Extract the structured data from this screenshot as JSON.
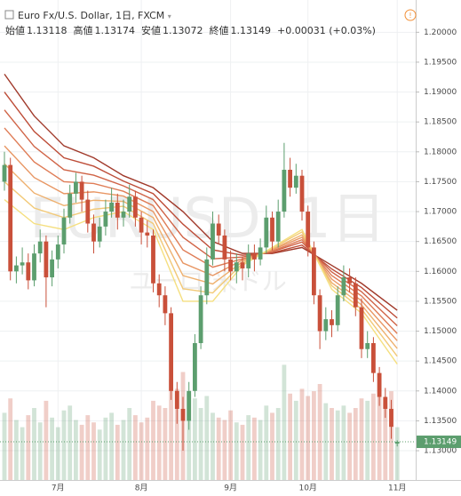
{
  "chart_data": {
    "type": "candlestick",
    "title": "Euro Fx/U.S. Dollar, 1日, FXCM",
    "stats": [
      {
        "name": "始値",
        "value": "1.13118"
      },
      {
        "name": "高値",
        "value": "1.13174"
      },
      {
        "name": "安値",
        "value": "1.13072"
      },
      {
        "name": "終値",
        "value": "1.13149"
      }
    ],
    "change": "+0.00031 (+0.03%)",
    "watermark": "EURUSD, 1日",
    "watermark_sub": "ユーロ/米ドル",
    "categories": [
      null,
      null,
      null,
      null,
      null,
      null,
      null,
      null,
      null,
      "7月",
      null,
      null,
      null,
      null,
      null,
      null,
      null,
      null,
      null,
      null,
      null,
      null,
      null,
      "8月",
      null,
      null,
      null,
      null,
      null,
      null,
      null,
      null,
      null,
      null,
      null,
      null,
      null,
      null,
      "9月",
      null,
      null,
      null,
      null,
      null,
      null,
      null,
      null,
      null,
      null,
      null,
      null,
      "10月",
      null,
      null,
      null,
      null,
      null,
      null,
      null,
      null,
      null,
      null,
      null,
      null,
      null,
      null,
      "11月"
    ],
    "open": [
      1.175,
      1.1778,
      1.16,
      1.161,
      1.1615,
      1.1585,
      1.163,
      1.165,
      1.159,
      1.162,
      1.1645,
      1.169,
      1.173,
      1.175,
      1.172,
      1.168,
      1.165,
      1.1675,
      1.17,
      1.1715,
      1.169,
      1.17,
      1.1725,
      1.169,
      1.1665,
      1.166,
      1.158,
      1.156,
      1.153,
      1.14,
      1.137,
      1.135,
      1.14,
      1.148,
      1.156,
      1.162,
      1.168,
      1.166,
      1.162,
      1.16,
      1.1615,
      1.1605,
      1.163,
      1.162,
      1.164,
      1.169,
      1.165,
      1.17,
      1.177,
      1.174,
      1.176,
      1.17,
      1.164,
      1.156,
      1.15,
      1.152,
      1.151,
      1.156,
      1.159,
      1.158,
      1.154,
      1.147,
      1.148,
      1.143,
      1.139,
      1.137,
      1.13118
    ],
    "high": [
      1.18,
      1.179,
      1.1625,
      1.164,
      1.163,
      1.1645,
      1.167,
      1.166,
      1.1635,
      1.166,
      1.1705,
      1.1745,
      1.1765,
      1.176,
      1.1735,
      1.1695,
      1.169,
      1.172,
      1.174,
      1.173,
      1.172,
      1.1745,
      1.1735,
      1.17,
      1.1685,
      1.167,
      1.1595,
      1.1575,
      1.154,
      1.1415,
      1.139,
      1.1415,
      1.1495,
      1.1575,
      1.164,
      1.17,
      1.1695,
      1.167,
      1.1635,
      1.163,
      1.1625,
      1.1645,
      1.1645,
      1.1655,
      1.171,
      1.17,
      1.172,
      1.1815,
      1.179,
      1.178,
      1.177,
      1.171,
      1.165,
      1.157,
      1.154,
      1.1535,
      1.1575,
      1.161,
      1.1605,
      1.159,
      1.1555,
      1.15,
      1.149,
      1.144,
      1.1405,
      1.1385,
      1.13174
    ],
    "low": [
      1.1735,
      1.1585,
      1.158,
      1.1595,
      1.157,
      1.1575,
      1.1615,
      1.154,
      1.1575,
      1.1605,
      1.163,
      1.168,
      1.1715,
      1.17,
      1.1665,
      1.163,
      1.164,
      1.166,
      1.169,
      1.167,
      1.1675,
      1.169,
      1.1675,
      1.1645,
      1.164,
      1.1565,
      1.154,
      1.151,
      1.1385,
      1.1345,
      1.13,
      1.1335,
      1.139,
      1.147,
      1.1545,
      1.161,
      1.1645,
      1.16,
      1.1585,
      1.158,
      1.1585,
      1.159,
      1.16,
      1.161,
      1.163,
      1.1635,
      1.164,
      1.169,
      1.1725,
      1.173,
      1.1685,
      1.1625,
      1.1545,
      1.147,
      1.1485,
      1.149,
      1.15,
      1.155,
      1.1565,
      1.1525,
      1.1455,
      1.1455,
      1.1415,
      1.1375,
      1.1355,
      1.132,
      1.13072
    ],
    "close": [
      1.1778,
      1.16,
      1.161,
      1.1615,
      1.1585,
      1.163,
      1.165,
      1.159,
      1.162,
      1.1645,
      1.169,
      1.173,
      1.175,
      1.172,
      1.168,
      1.165,
      1.1675,
      1.17,
      1.1715,
      1.169,
      1.17,
      1.1725,
      1.169,
      1.1665,
      1.166,
      1.158,
      1.156,
      1.153,
      1.14,
      1.137,
      1.135,
      1.14,
      1.148,
      1.156,
      1.162,
      1.168,
      1.166,
      1.162,
      1.16,
      1.1615,
      1.1605,
      1.163,
      1.162,
      1.164,
      1.169,
      1.165,
      1.17,
      1.177,
      1.174,
      1.176,
      1.17,
      1.164,
      1.156,
      1.15,
      1.152,
      1.151,
      1.156,
      1.159,
      1.158,
      1.154,
      1.147,
      1.148,
      1.143,
      1.139,
      1.137,
      1.134,
      1.13149
    ],
    "volume": [
      28,
      34,
      25,
      22,
      27,
      30,
      24,
      33,
      26,
      22,
      29,
      31,
      25,
      23,
      27,
      24,
      21,
      26,
      28,
      23,
      25,
      30,
      27,
      24,
      26,
      33,
      31,
      30,
      42,
      38,
      45,
      36,
      34,
      30,
      35,
      28,
      26,
      25,
      29,
      24,
      23,
      27,
      26,
      25,
      31,
      28,
      30,
      48,
      36,
      33,
      38,
      35,
      37,
      40,
      32,
      30,
      29,
      31,
      28,
      30,
      34,
      33,
      36,
      35,
      32,
      37,
      22
    ],
    "vlim": [
      0,
      200
    ],
    "up_color": "#5c9e6e",
    "down_color": "#c9503a",
    "ylim": [
      1.1251,
      1.2054
    ],
    "yticks": [
      {
        "value": 1.13,
        "label": "1.13000"
      },
      {
        "value": 1.135,
        "label": "1.13500"
      },
      {
        "value": 1.14,
        "label": "1.14000"
      },
      {
        "value": 1.145,
        "label": "1.14500"
      },
      {
        "value": 1.15,
        "label": "1.15000"
      },
      {
        "value": 1.155,
        "label": "1.15500"
      },
      {
        "value": 1.16,
        "label": "1.16000"
      },
      {
        "value": 1.165,
        "label": "1.16500"
      },
      {
        "value": 1.17,
        "label": "1.17000"
      },
      {
        "value": 1.175,
        "label": "1.17500"
      },
      {
        "value": 1.18,
        "label": "1.18000"
      },
      {
        "value": 1.185,
        "label": "1.18500"
      },
      {
        "value": 1.19,
        "label": "1.19000"
      },
      {
        "value": 1.195,
        "label": "1.19500"
      },
      {
        "value": 1.2,
        "label": "1.20000"
      }
    ],
    "grid": true,
    "last_price": {
      "value": 1.13149,
      "label": "1.13149"
    },
    "ribbons": {
      "x": [
        0,
        5,
        10,
        15,
        20,
        25,
        30,
        35,
        40,
        45,
        50,
        55,
        60,
        66
      ],
      "series": [
        {
          "color": "#a0392a",
          "values": [
            1.193,
            1.186,
            1.181,
            1.179,
            1.176,
            1.174,
            1.17,
            1.165,
            1.163,
            1.163,
            1.164,
            1.161,
            1.158,
            1.1535
          ]
        },
        {
          "color": "#bd4c37",
          "values": [
            1.19,
            1.1834,
            1.179,
            1.1776,
            1.1751,
            1.173,
            1.1679,
            1.1636,
            1.1627,
            1.1631,
            1.1644,
            1.1604,
            1.1573,
            1.1522
          ]
        },
        {
          "color": "#d06447",
          "values": [
            1.187,
            1.1809,
            1.177,
            1.1761,
            1.1743,
            1.172,
            1.1657,
            1.1621,
            1.1624,
            1.1633,
            1.1649,
            1.1599,
            1.1566,
            1.1509
          ]
        },
        {
          "color": "#df7c56",
          "values": [
            1.184,
            1.1783,
            1.175,
            1.1747,
            1.1734,
            1.171,
            1.1636,
            1.1607,
            1.1621,
            1.1634,
            1.1653,
            1.1593,
            1.1559,
            1.1496
          ]
        },
        {
          "color": "#e89663",
          "values": [
            1.181,
            1.1757,
            1.173,
            1.1733,
            1.1726,
            1.17,
            1.1614,
            1.1593,
            1.1619,
            1.1636,
            1.1657,
            1.1587,
            1.1551,
            1.1484
          ]
        },
        {
          "color": "#eeb06e",
          "values": [
            1.178,
            1.1731,
            1.171,
            1.1719,
            1.1717,
            1.169,
            1.1593,
            1.1579,
            1.1616,
            1.1637,
            1.1661,
            1.1581,
            1.1544,
            1.1471
          ]
        },
        {
          "color": "#f2c977",
          "values": [
            1.175,
            1.1706,
            1.169,
            1.1704,
            1.1709,
            1.168,
            1.1571,
            1.1564,
            1.1613,
            1.1639,
            1.1666,
            1.1576,
            1.1537,
            1.1458
          ]
        },
        {
          "color": "#f5df80",
          "values": [
            1.172,
            1.168,
            1.167,
            1.169,
            1.17,
            1.167,
            1.155,
            1.155,
            1.161,
            1.164,
            1.167,
            1.157,
            1.153,
            1.1445
          ]
        }
      ]
    }
  }
}
